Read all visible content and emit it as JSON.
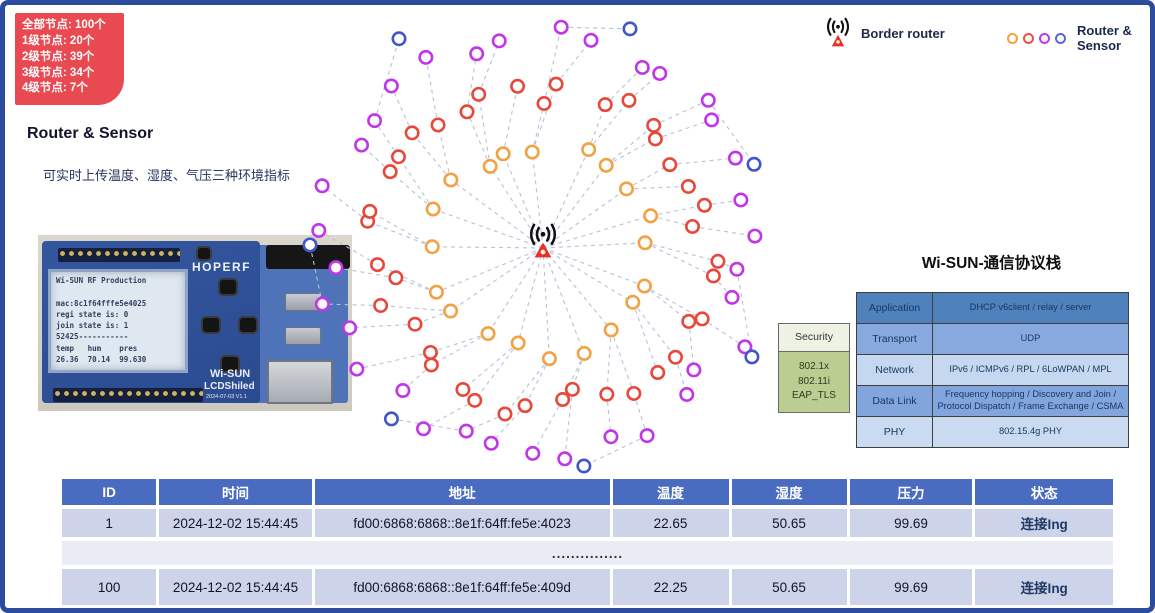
{
  "badge": {
    "lines": [
      "全部节点: 100个",
      "1级节点: 20个",
      "2级节点: 39个",
      "3级节点: 34个",
      "4级节点: 7个"
    ]
  },
  "left_panel": {
    "heading": "Router & Sensor",
    "description": "可实时上传温度、湿度、气压三种环境指标"
  },
  "device_photo": {
    "brand": "HOPERF",
    "board_line1": "Wi-SUN",
    "board_line2": "LCDShiled",
    "board_version": "2024-07-03 V1.1",
    "lcd_lines": [
      "Wi-SUN RF Production",
      "",
      "mac:8c1f64fffe5e4025",
      "regi state is: 0",
      "join state is: 1",
      "52425-----------",
      "temp   hum    pres",
      "26.36  70.14  99.630"
    ]
  },
  "legend": {
    "border_router_label": "Border router",
    "router_sensor_label": "Router & Sensor",
    "router_sensor_colors": [
      "#f2a144",
      "#ee4f43",
      "#c13ae8",
      "#5b66d9"
    ]
  },
  "topology": {
    "edge_color": "#b7c1d6",
    "levels": [
      {
        "level": 1,
        "count": 20,
        "color": "#f2a144",
        "radius": 108
      },
      {
        "level": 2,
        "count": 39,
        "color": "#e8483c",
        "radius": 163
      },
      {
        "level": 3,
        "count": 34,
        "color": "#c136e8",
        "radius": 212
      },
      {
        "level": 4,
        "count": 7,
        "color": "#4157c8",
        "radius": 241
      }
    ]
  },
  "protocol": {
    "title": "Wi-SUN-通信协议栈",
    "security": {
      "header": "Security",
      "body_lines": [
        "802.1x",
        "802.11i",
        "EAP_TLS"
      ]
    },
    "layers": [
      {
        "name": "Application",
        "value": "DHCP v6client / relay / server",
        "color": "#4f81bd"
      },
      {
        "name": "Transport",
        "value": "UDP",
        "color": "#87a9de"
      },
      {
        "name": "Network",
        "value": "IPv6 / ICMPv6 / RPL / 6LoWPAN / MPL",
        "color": "#c6d8f0"
      },
      {
        "name": "Data Link",
        "value": "Frequency hopping / Discovery and Join / Protocol Dispatch / Frame Exchange / CSMA",
        "color": "#82a5dd"
      },
      {
        "name": "PHY",
        "value": "802.15.4g PHY",
        "color": "#c9daf1"
      }
    ]
  },
  "table": {
    "headers": [
      "ID",
      "时间",
      "地址",
      "温度",
      "湿度",
      "压力",
      "状态"
    ],
    "rows": [
      {
        "cells": [
          "1",
          "2024-12-02 15:44:45",
          "fd00:6868:6868::8e1f:64ff:fe5e:4023",
          "22.65",
          "50.65",
          "99.69",
          "连接Ing"
        ]
      },
      {
        "cells": [
          "100",
          "2024-12-02 15:44:45",
          "fd00:6868:6868::8e1f:64ff:fe5e:409d",
          "22.25",
          "50.65",
          "99.69",
          "连接Ing"
        ]
      }
    ],
    "ellipsis": "..............."
  }
}
